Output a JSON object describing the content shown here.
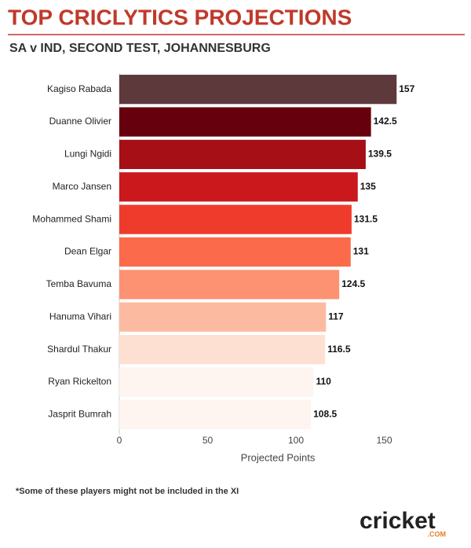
{
  "chart_data": {
    "type": "bar",
    "orientation": "horizontal",
    "title": "TOP CRICLYTICS PROJECTIONS",
    "subtitle": "SA v IND, SECOND TEST, JOHANNESBURG",
    "x_label": "Projected Points",
    "footnote": "*Some of these players might not be included in the XI",
    "logo": "cricket",
    "logo_suffix": ".COM",
    "categories": [
      "Kagiso Rabada",
      "Duanne Olivier",
      "Lungi Ngidi",
      "Marco Jansen",
      "Mohammed Shami",
      "Dean Elgar",
      "Temba Bavuma",
      "Hanuma Vihari",
      "Shardul Thakur",
      "Ryan Rickelton",
      "Jasprit Bumrah"
    ],
    "values": [
      157,
      142.5,
      139.5,
      135,
      131.5,
      131,
      124.5,
      117,
      116.5,
      110,
      108.5
    ],
    "colors": [
      "#5e393b",
      "#67000d",
      "#a50f15",
      "#cb181d",
      "#ef3b2c",
      "#fb6a4a",
      "#fc9272",
      "#fcbba1",
      "#fee0d2",
      "#fff5f0",
      "#fff5f0"
    ],
    "xlim": [
      0,
      160
    ],
    "xticks": [
      0,
      50,
      100,
      150
    ],
    "grid": false
  }
}
